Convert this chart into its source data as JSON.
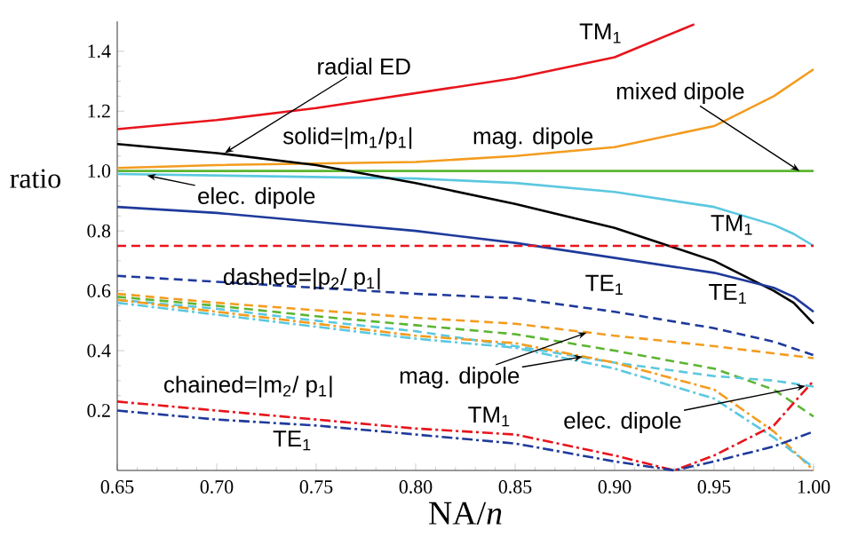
{
  "chart_data": {
    "type": "line",
    "xlabel": "NA/*n*",
    "ylabel": "ratio",
    "xlim": [
      0.65,
      1.0
    ],
    "ylim": [
      0,
      1.5
    ],
    "xticks": [
      0.65,
      {
        "value": 0.7,
        "label": "0.70"
      },
      0.75,
      {
        "value": 0.8,
        "label": "0.80"
      },
      0.85,
      {
        "value": 0.9,
        "label": "0.90"
      },
      0.95,
      {
        "value": 1.0,
        "label": "1.00"
      }
    ],
    "yticks": [
      0.2,
      0.4,
      0.6,
      0.8,
      {
        "value": 1.0,
        "label": "1.0"
      },
      1.2,
      1.4
    ],
    "series": [
      {
        "color": "#e8141c",
        "line_style": "solid",
        "x": [
          0.65,
          0.7,
          0.75,
          0.8,
          0.85,
          0.9,
          0.94
        ],
        "values": [
          1.14,
          1.17,
          1.21,
          1.26,
          1.31,
          1.38,
          1.49
        ]
      },
      {
        "color": "#f39c1f",
        "line_style": "solid",
        "x": [
          0.65,
          0.7,
          0.75,
          0.8,
          0.85,
          0.9,
          0.95,
          0.98,
          1.0
        ],
        "values": [
          1.01,
          1.02,
          1.025,
          1.03,
          1.05,
          1.08,
          1.15,
          1.25,
          1.34
        ]
      },
      {
        "color": "#5cb531",
        "line_style": "solid",
        "x": [
          0.65,
          1.0
        ],
        "values": [
          1.0,
          1.0
        ]
      },
      {
        "color": "#5bc8e0",
        "line_style": "solid",
        "x": [
          0.65,
          0.7,
          0.75,
          0.8,
          0.85,
          0.9,
          0.95,
          0.98,
          0.99,
          1.0
        ],
        "values": [
          0.99,
          0.985,
          0.98,
          0.975,
          0.96,
          0.93,
          0.88,
          0.82,
          0.79,
          0.75
        ]
      },
      {
        "color": "#000000",
        "line_style": "solid",
        "x": [
          0.65,
          0.7,
          0.75,
          0.8,
          0.85,
          0.9,
          0.95,
          0.98,
          0.99,
          1.0
        ],
        "values": [
          1.09,
          1.06,
          1.02,
          0.96,
          0.89,
          0.81,
          0.7,
          0.6,
          0.56,
          0.49
        ]
      },
      {
        "color": "#1f3a9c",
        "line_style": "solid",
        "x": [
          0.65,
          0.7,
          0.75,
          0.8,
          0.85,
          0.9,
          0.95,
          0.98,
          0.99,
          1.0
        ],
        "values": [
          0.88,
          0.86,
          0.83,
          0.8,
          0.76,
          0.71,
          0.66,
          0.61,
          0.58,
          0.53
        ]
      },
      {
        "color": "#e8141c",
        "line_style": "dashed",
        "x": [
          0.65,
          1.0
        ],
        "values": [
          0.75,
          0.75
        ]
      },
      {
        "color": "#1f3a9c",
        "line_style": "dashed",
        "x": [
          0.65,
          0.7,
          0.75,
          0.8,
          0.85,
          0.9,
          0.95,
          0.98,
          1.0
        ],
        "values": [
          0.65,
          0.63,
          0.61,
          0.59,
          0.575,
          0.53,
          0.475,
          0.43,
          0.385
        ]
      },
      {
        "color": "#f39c1f",
        "line_style": "dashed",
        "x": [
          0.65,
          0.7,
          0.75,
          0.8,
          0.85,
          0.9,
          0.95,
          1.0
        ],
        "values": [
          0.59,
          0.56,
          0.535,
          0.51,
          0.49,
          0.45,
          0.415,
          0.375
        ]
      },
      {
        "color": "#5cb531",
        "line_style": "dashed",
        "x": [
          0.65,
          0.7,
          0.75,
          0.8,
          0.85,
          0.9,
          0.95,
          0.98,
          1.0
        ],
        "values": [
          0.58,
          0.55,
          0.515,
          0.485,
          0.455,
          0.4,
          0.34,
          0.27,
          0.18
        ]
      },
      {
        "color": "#5bc8e0",
        "line_style": "dashed",
        "x": [
          0.65,
          0.7,
          0.75,
          0.8,
          0.85,
          0.9,
          0.95,
          0.98,
          1.0
        ],
        "values": [
          0.57,
          0.54,
          0.5,
          0.465,
          0.415,
          0.36,
          0.315,
          0.3,
          0.28
        ]
      },
      {
        "color": "#f39c1f",
        "line_style": "dashdot",
        "x": [
          0.65,
          0.7,
          0.75,
          0.8,
          0.85,
          0.9,
          0.95,
          0.98,
          1.0
        ],
        "values": [
          0.57,
          0.53,
          0.49,
          0.45,
          0.425,
          0.36,
          0.27,
          0.13,
          0.0
        ]
      },
      {
        "color": "#5bc8e0",
        "line_style": "dashdot",
        "x": [
          0.65,
          0.7,
          0.75,
          0.8,
          0.85,
          0.9,
          0.95,
          0.98,
          1.0
        ],
        "values": [
          0.56,
          0.52,
          0.48,
          0.44,
          0.41,
          0.34,
          0.24,
          0.11,
          0.01
        ]
      },
      {
        "color": "#e8141c",
        "line_style": "dashdot",
        "x": [
          0.65,
          0.7,
          0.75,
          0.8,
          0.85,
          0.9,
          0.93,
          0.95,
          0.98,
          1.0
        ],
        "values": [
          0.23,
          0.2,
          0.17,
          0.14,
          0.12,
          0.05,
          0.0,
          0.05,
          0.15,
          0.3
        ]
      },
      {
        "color": "#1f3a9c",
        "line_style": "dashdot",
        "x": [
          0.65,
          0.7,
          0.75,
          0.8,
          0.85,
          0.9,
          0.93,
          0.95,
          0.98,
          1.0
        ],
        "values": [
          0.2,
          0.17,
          0.15,
          0.12,
          0.09,
          0.03,
          0.0,
          0.03,
          0.08,
          0.13
        ]
      }
    ],
    "annotations": [
      {
        "text": "radial ED",
        "x": 0.704,
        "y": 1.06
      },
      "TM$_{1}$",
      {
        "text": "mixed dipole",
        "x": 0.993,
        "y": 1.0
      },
      "solid=|m$_{1}$/p$_{1}$|",
      "mag. dipole",
      {
        "text": "elec. dipole",
        "x": 0.665,
        "y": 0.985
      },
      "TM$_{1}$",
      "dashed=|p$_{2}$/ p$_{1}$|",
      "TE$_{1}$",
      "TE$_{1}$",
      {
        "text": "mag. dipole",
        "x": 0.886,
        "y": 0.46
      },
      "TM$_{1}$",
      {
        "text": "elec. dipole",
        "x": 0.996,
        "y": 0.282
      },
      "chained=|m$_{2}$/ p$_{1}$|",
      "TE$_{1}$"
    ]
  }
}
